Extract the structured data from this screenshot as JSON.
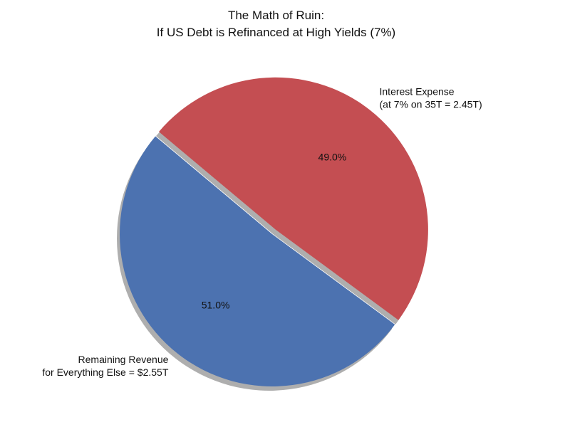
{
  "chart_data": {
    "type": "pie",
    "title": [
      "The Math of Ruin:",
      "If US Debt is Refinanced at High Yields (7%)"
    ],
    "slices": [
      {
        "label_lines": [
          "Remaining Revenue",
          "for Everything Else = $2.55T"
        ],
        "value": 2.55,
        "percent_label": "51.0%",
        "color": "#4c72b0",
        "exploded": false
      },
      {
        "label_lines": [
          "Interest Expense",
          "(at 7% on 35T = 2.45T)"
        ],
        "value": 2.45,
        "percent_label": "49.0%",
        "color": "#c44e52",
        "exploded": true
      }
    ],
    "shadow": true,
    "start_angle_deg": 140,
    "legend": "none"
  }
}
